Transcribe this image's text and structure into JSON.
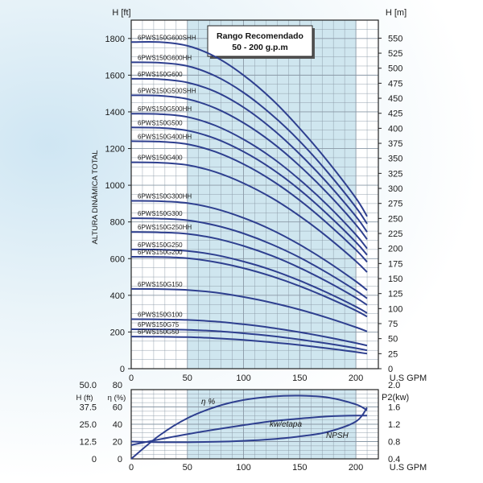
{
  "chart_data": [
    {
      "type": "line",
      "title": "",
      "xlabel": "U.S GPM",
      "ylabel_left_unit": "H [ft]",
      "ylabel_left": "ALTURA DINÁMICA TOTAL",
      "ylabel_right_unit": "H [m]",
      "xlim": [
        0,
        220
      ],
      "ylim": [
        0,
        1900
      ],
      "ylim_right": [
        0,
        580
      ],
      "x_ticks": [
        0,
        50,
        100,
        150,
        200
      ],
      "y_ticks": [
        0,
        200,
        400,
        600,
        800,
        1000,
        1200,
        1400,
        1600,
        1800
      ],
      "y_right_ticks": [
        0,
        25,
        50,
        75,
        100,
        125,
        150,
        175,
        200,
        225,
        250,
        275,
        300,
        325,
        350,
        375,
        400,
        425,
        450,
        475,
        500,
        525,
        550
      ],
      "grid": true,
      "recommended_range": {
        "x0": 50,
        "x1": 200,
        "label_line1": "Rango Recomendado",
        "label_line2": "50 - 200 g.p.m"
      },
      "x": [
        0,
        25,
        50,
        75,
        100,
        125,
        150,
        175,
        200,
        210
      ],
      "series": [
        {
          "name": "6PWS150G600SHH",
          "values": [
            1780,
            1780,
            1760,
            1700,
            1600,
            1470,
            1310,
            1130,
            930,
            830
          ]
        },
        {
          "name": "6PWS150G600HH",
          "values": [
            1670,
            1668,
            1650,
            1595,
            1505,
            1385,
            1240,
            1070,
            880,
            790
          ]
        },
        {
          "name": "6PWS150G600",
          "values": [
            1580,
            1578,
            1560,
            1510,
            1425,
            1310,
            1170,
            1010,
            830,
            745
          ]
        },
        {
          "name": "6PWS150G500SHH",
          "values": [
            1490,
            1488,
            1470,
            1420,
            1340,
            1235,
            1105,
            955,
            785,
            705
          ]
        },
        {
          "name": "6PWS150G500HH",
          "values": [
            1390,
            1388,
            1372,
            1325,
            1250,
            1152,
            1030,
            890,
            730,
            655
          ]
        },
        {
          "name": "6PWS150G500",
          "values": [
            1315,
            1313,
            1298,
            1254,
            1183,
            1090,
            975,
            840,
            690,
            620
          ]
        },
        {
          "name": "6PWS150G400HH",
          "values": [
            1240,
            1238,
            1224,
            1182,
            1115,
            1027,
            918,
            790,
            648,
            582
          ]
        },
        {
          "name": "6PWS150G400",
          "values": [
            1125,
            1123,
            1110,
            1072,
            1011,
            931,
            832,
            716,
            586,
            526
          ]
        },
        {
          "name": "6PWS150G300HH",
          "values": [
            915,
            913,
            903,
            872,
            822,
            757,
            676,
            582,
            476,
            428
          ]
        },
        {
          "name": "6PWS150G300",
          "values": [
            820,
            818,
            809,
            781,
            737,
            678,
            606,
            521,
            426,
            383
          ]
        },
        {
          "name": "6PWS150G250HH",
          "values": [
            745,
            743,
            735,
            710,
            669,
            616,
            550,
            473,
            387,
            347
          ]
        },
        {
          "name": "6PWS150G250",
          "values": [
            650,
            649,
            642,
            620,
            584,
            538,
            480,
            413,
            338,
            303
          ]
        },
        {
          "name": "6PWS150G200",
          "values": [
            610,
            609,
            602,
            581,
            548,
            504,
            450,
            387,
            317,
            284
          ]
        },
        {
          "name": "6PWS150G150",
          "values": [
            435,
            434,
            429,
            415,
            391,
            360,
            322,
            277,
            226,
            203
          ]
        },
        {
          "name": "6PWS150G100",
          "values": [
            270,
            269,
            266,
            257,
            242,
            223,
            199,
            171,
            140,
            126
          ]
        },
        {
          "name": "6PWS150G75",
          "values": [
            215,
            214,
            212,
            205,
            193,
            178,
            159,
            137,
            112,
            100
          ]
        },
        {
          "name": "6PWS150G50",
          "values": [
            175,
            174,
            172,
            166,
            157,
            144,
            129,
            111,
            91,
            82
          ]
        }
      ]
    },
    {
      "type": "line",
      "title": "",
      "xlabel": "U.S GPM",
      "xlim": [
        0,
        220
      ],
      "x_ticks": [
        0,
        50,
        100,
        150,
        200
      ],
      "left_axis_1": {
        "label": "H (ft)",
        "ticks": [
          "0",
          "12.5",
          "25.0",
          "37.5",
          "50.0"
        ]
      },
      "left_axis_2": {
        "label": "η (%)",
        "ticks": [
          "0",
          "20",
          "40",
          "60",
          "80"
        ],
        "ylim": [
          0,
          80
        ]
      },
      "right_axis": {
        "label": "P2(kw)",
        "ticks": [
          "0.4",
          "0.8",
          "1.2",
          "1.6",
          "2.0"
        ],
        "ylim": [
          0.4,
          2.0
        ]
      },
      "grid": true,
      "series": [
        {
          "name": "η %",
          "axis": "eta",
          "x": [
            0,
            25,
            50,
            75,
            100,
            125,
            150,
            175,
            200,
            210
          ],
          "values": [
            0,
            27,
            47,
            60,
            68,
            72,
            73,
            71,
            63,
            56
          ]
        },
        {
          "name": "kw/etapa",
          "axis": "p2",
          "x": [
            0,
            25,
            50,
            75,
            100,
            125,
            150,
            175,
            200,
            210
          ],
          "values": [
            0.72,
            0.85,
            0.97,
            1.08,
            1.18,
            1.27,
            1.33,
            1.38,
            1.4,
            1.4
          ]
        },
        {
          "name": "NPSH",
          "axis": "h_ft",
          "x": [
            0,
            25,
            50,
            75,
            100,
            125,
            150,
            175,
            200,
            210
          ],
          "values": [
            12.5,
            12.0,
            12.0,
            12.3,
            13.0,
            14.2,
            16.2,
            19.5,
            27.0,
            37.0
          ]
        }
      ]
    }
  ]
}
